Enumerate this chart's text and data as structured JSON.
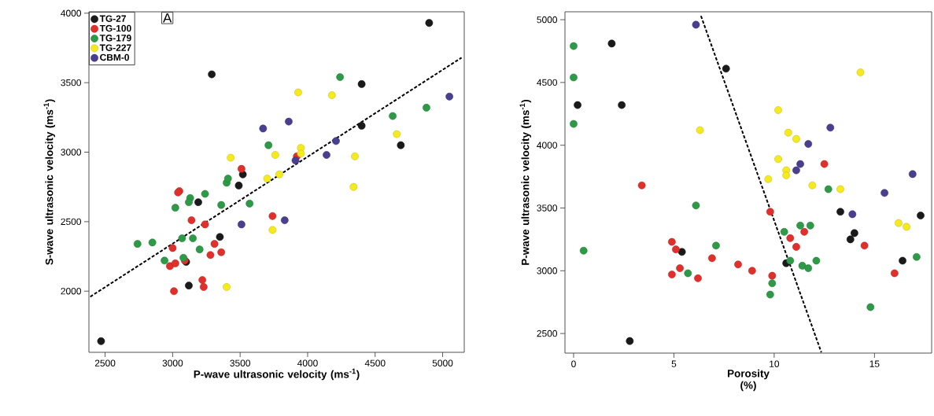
{
  "chart_data": [
    {
      "type": "scatter",
      "xlabel": "P-wave ultrasonic velocity (ms$^{-1}$)",
      "ylabel": "S-wave ultrasonic velocity (ms$^{-1}$)",
      "xlim": [
        2380,
        5160
      ],
      "ylim": [
        1560,
        4010
      ],
      "xticks": [
        2500,
        3000,
        3500,
        4000,
        4500,
        5000
      ],
      "yticks": [
        2000,
        2500,
        3000,
        3500,
        4000
      ],
      "legend": "top left",
      "marker": "circle",
      "annotations": [
        "A"
      ],
      "series": [
        {
          "name": "TG-27",
          "color": "#1a1a1a",
          "x": [
            2470,
            3290,
            4900,
            4400,
            4400,
            4690,
            3490,
            3520,
            3190,
            3350,
            3100,
            3120
          ],
          "values": [
            1640,
            3560,
            3930,
            3490,
            3190,
            3050,
            2760,
            2840,
            2640,
            2390,
            2210,
            2040
          ]
        },
        {
          "name": "TG-100",
          "color": "#e0302c",
          "x": [
            3050,
            3040,
            3140,
            3240,
            3740,
            3000,
            3310,
            3360,
            3280,
            2980,
            3020,
            3090,
            3220,
            3230,
            3010,
            3510,
            3920
          ],
          "values": [
            2720,
            2710,
            2510,
            2480,
            2540,
            2310,
            2340,
            2280,
            2260,
            2180,
            2200,
            2220,
            2080,
            2030,
            2000,
            2880,
            2970
          ]
        },
        {
          "name": "TG-179",
          "color": "#2e9a48",
          "x": [
            2740,
            2850,
            2940,
            3080,
            3020,
            3130,
            3120,
            3240,
            3360,
            3570,
            3070,
            3150,
            3200,
            3400,
            3410,
            3710,
            4240,
            4630,
            4880
          ],
          "values": [
            2340,
            2350,
            2220,
            2240,
            2600,
            2670,
            2640,
            2700,
            2620,
            2630,
            2380,
            2380,
            2300,
            2780,
            2810,
            3050,
            3540,
            3260,
            3320
          ]
        },
        {
          "name": "TG-227",
          "color": "#f5ea1e",
          "x": [
            3430,
            3930,
            4180,
            3760,
            3950,
            3950,
            4350,
            4660,
            3790,
            3700,
            4340,
            3740,
            3400
          ],
          "values": [
            2960,
            3430,
            3410,
            2980,
            3030,
            2990,
            2970,
            3130,
            2840,
            2810,
            2750,
            2440,
            2030
          ]
        },
        {
          "name": "CBM-0",
          "color": "#4a3f8f",
          "x": [
            3670,
            3860,
            4210,
            4140,
            3910,
            5050,
            3510,
            3830
          ],
          "values": [
            3170,
            3220,
            3080,
            2980,
            2940,
            3400,
            2480,
            2510
          ]
        },
        {
          "type": "line",
          "color": "#000000",
          "line_style": "dashed",
          "marker": "none",
          "x": [
            2390,
            5140
          ],
          "values": [
            1960,
            3680
          ]
        }
      ]
    },
    {
      "type": "scatter",
      "xlabel": "Porosity (%)",
      "ylabel": "P-wave ultrasonic velocity (ms$^{-1}$)",
      "xlim": [
        -0.43,
        17.85
      ],
      "ylim": [
        2344,
        5063
      ],
      "xticks": [
        0,
        5,
        10,
        15
      ],
      "yticks": [
        2500,
        3000,
        3500,
        4000,
        4500,
        5000
      ],
      "marker": "circle",
      "series": [
        {
          "color": "#1a1a1a",
          "x": [
            1.9,
            7.6,
            0.2,
            2.4,
            5.4,
            2.8,
            10.6,
            13.3,
            14.0,
            13.8,
            16.4,
            17.3
          ],
          "values": [
            4810,
            4610,
            4320,
            4320,
            3150,
            2440,
            3060,
            3470,
            3300,
            3250,
            3080,
            3440
          ]
        },
        {
          "color": "#e0302c",
          "x": [
            3.4,
            4.9,
            5.1,
            5.3,
            4.9,
            6.2,
            6.9,
            8.2,
            8.9,
            9.8,
            9.9,
            10.8,
            11.1,
            11.5,
            12.5,
            14.5,
            16.0
          ],
          "values": [
            3680,
            3230,
            3170,
            3020,
            2970,
            2940,
            3100,
            3050,
            3000,
            3470,
            2960,
            3260,
            3190,
            3310,
            3850,
            3200,
            2980
          ]
        },
        {
          "color": "#2e9a48",
          "x": [
            0.0,
            0.0,
            0.0,
            0.5,
            6.1,
            7.1,
            5.7,
            10.5,
            11.3,
            11.8,
            10.8,
            11.4,
            11.7,
            12.1,
            9.9,
            9.8,
            12.7,
            14.8,
            17.1
          ],
          "values": [
            4790,
            4540,
            4170,
            3160,
            3520,
            3200,
            2980,
            3310,
            3360,
            3360,
            3080,
            3040,
            3020,
            3080,
            2900,
            2810,
            3650,
            2710,
            3110
          ]
        },
        {
          "color": "#f5ea1e",
          "x": [
            6.3,
            14.3,
            10.2,
            10.7,
            11.1,
            10.2,
            10.6,
            10.6,
            9.7,
            11.9,
            13.3,
            16.2,
            16.6
          ],
          "values": [
            4120,
            4580,
            4280,
            4100,
            4050,
            3890,
            3800,
            3760,
            3730,
            3680,
            3650,
            3380,
            3350
          ]
        },
        {
          "color": "#4a3f8f",
          "x": [
            6.1,
            12.8,
            11.7,
            11.3,
            11.1,
            16.9,
            15.5,
            13.9
          ],
          "values": [
            4960,
            4140,
            4010,
            3850,
            3800,
            3770,
            3620,
            3450
          ]
        },
        {
          "type": "line",
          "color": "#000000",
          "line_style": "dashed",
          "marker": "none",
          "x": [
            6.35,
            12.35
          ],
          "values": [
            5030,
            2350
          ]
        }
      ]
    }
  ]
}
